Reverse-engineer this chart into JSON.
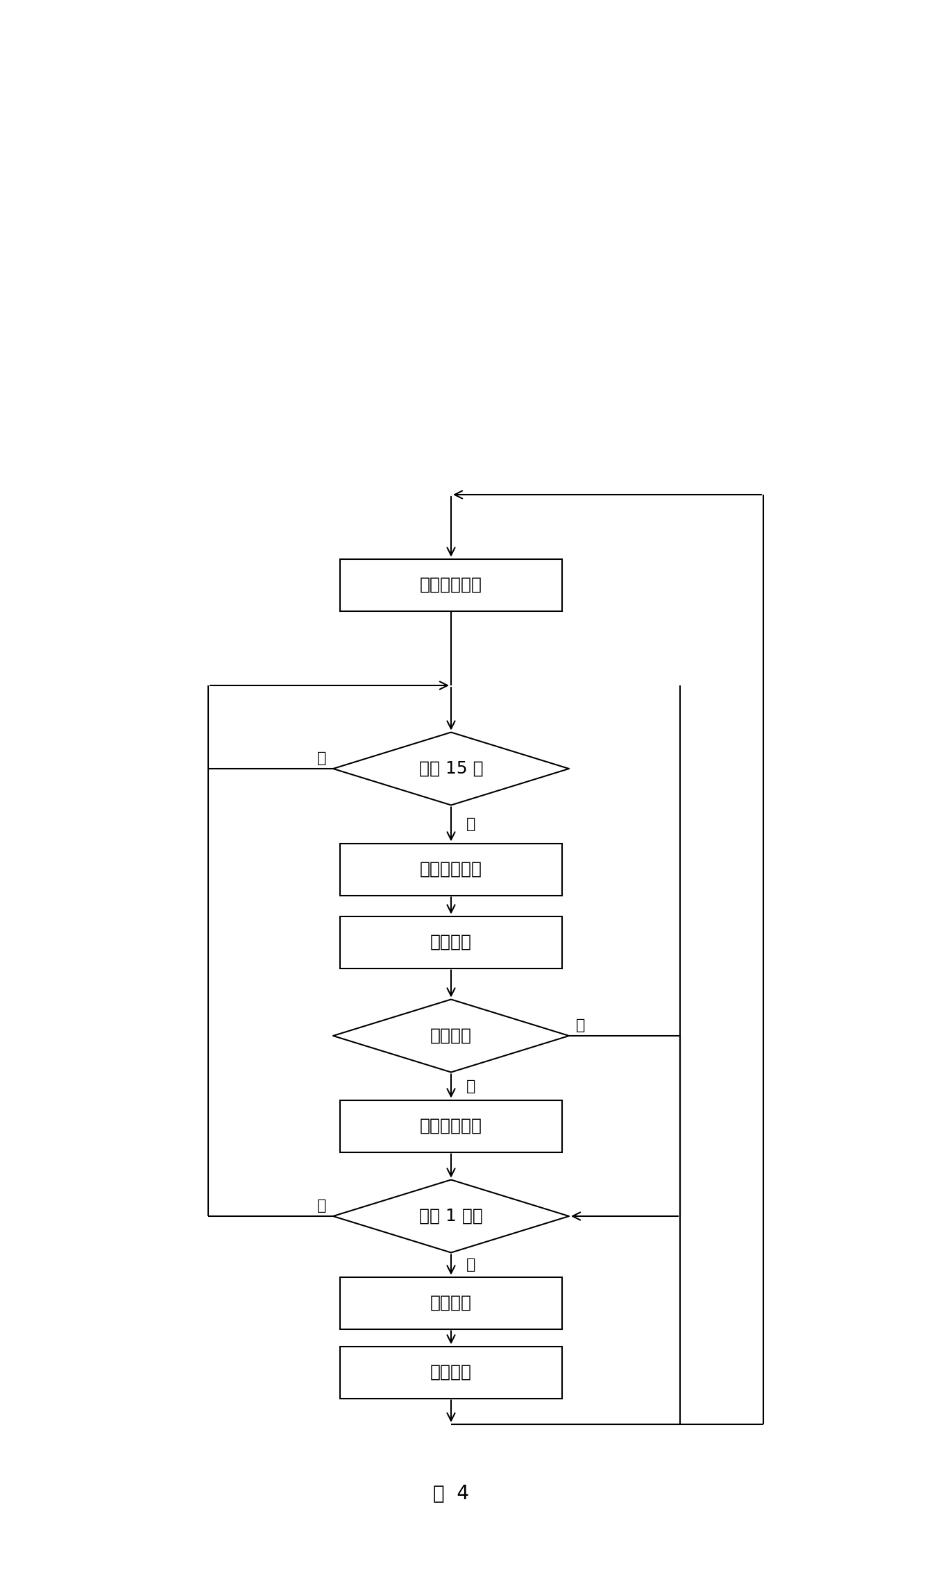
{
  "figure_caption": "图 4",
  "bg_color": "#ffffff",
  "line_color": "#000000",
  "box_color": "#ffffff",
  "text_color": "#000000",
  "font_size": 18,
  "caption_font_size": 20,
  "nodes": {
    "init": {
      "label": "启动并初始化",
      "type": "rect"
    },
    "d15s": {
      "label": "是否 15 秒",
      "type": "diamond"
    },
    "collect": {
      "label": "采集运行数据",
      "type": "rect"
    },
    "analyze": {
      "label": "分析数据",
      "type": "rect"
    },
    "fault": {
      "label": "是否故障",
      "type": "diamond"
    },
    "save": {
      "label": "保存运行数据",
      "type": "rect"
    },
    "d1h": {
      "label": "是否 1 小时",
      "type": "diamond"
    },
    "connect": {
      "label": "连接网络",
      "type": "rect"
    },
    "send": {
      "label": "发送数据",
      "type": "rect"
    }
  },
  "labels": {
    "yes": "是",
    "no": "否"
  },
  "caption_text": "图  4"
}
